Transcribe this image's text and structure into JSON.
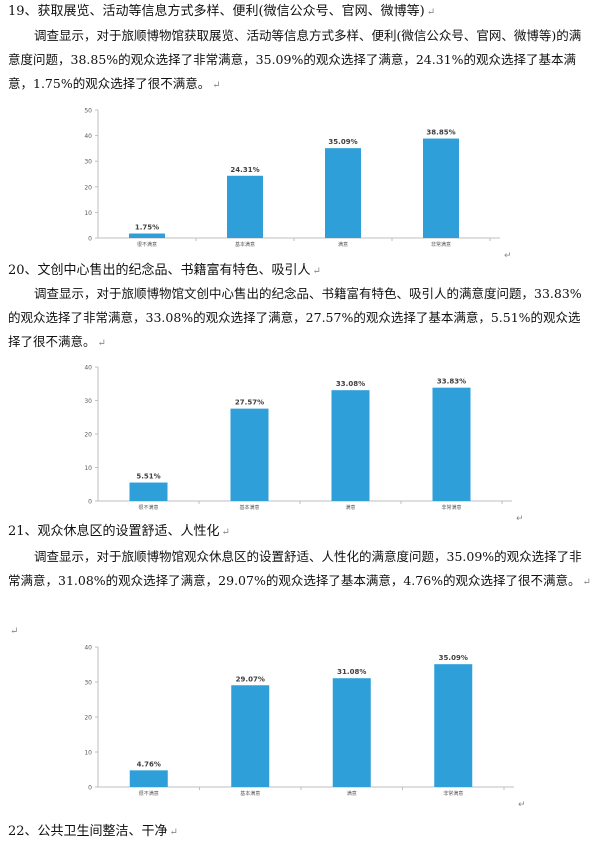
{
  "sections": [
    {
      "heading": "19、获取展览、活动等信息方式多样、便利(微信公众号、官网、微博等)",
      "paragraph": "调查显示，对于旅顺博物馆获取展览、活动等信息方式多样、便利(微信公众号、官网、微博等)的满意度问题，38.85%的观众选择了非常满意，35.09%的观众选择了满意，24.31%的观众选择了基本满意，1.75%的观众选择了很不满意。"
    },
    {
      "heading": "20、文创中心售出的纪念品、书籍富有特色、吸引人",
      "paragraph": "调查显示，对于旅顺博物馆文创中心售出的纪念品、书籍富有特色、吸引人的满意度问题，33.83%的观众选择了非常满意，33.08%的观众选择了满意，27.57%的观众选择了基本满意，5.51%的观众选择了很不满意。"
    },
    {
      "heading": "21、观众休息区的设置舒适、人性化",
      "paragraph": "调查显示，对于旅顺博物馆观众休息区的设置舒适、人性化的满意度问题，35.09%的观众选择了非常满意，31.08%的观众选择了满意，29.07%的观众选择了基本满意，4.76%的观众选择了很不满意。"
    },
    {
      "heading": "22、公共卫生间整洁、干净"
    }
  ],
  "paragraph_mark": "↵",
  "bar_color": "#2e9fd8",
  "chart_data": [
    {
      "type": "bar",
      "categories": [
        "很不满意",
        "基本满意",
        "满意",
        "非常满意"
      ],
      "values": [
        1.75,
        24.31,
        35.09,
        38.85
      ],
      "labels": [
        "1.75%",
        "24.31%",
        "35.09%",
        "38.85%"
      ],
      "ylim": [
        0,
        50
      ],
      "yticks": [
        0,
        10,
        20,
        30,
        40,
        50
      ],
      "grid": false
    },
    {
      "type": "bar",
      "categories": [
        "很不满意",
        "基本满意",
        "满意",
        "非常满意"
      ],
      "values": [
        5.51,
        27.57,
        33.08,
        33.83
      ],
      "labels": [
        "5.51%",
        "27.57%",
        "33.08%",
        "33.83%"
      ],
      "ylim": [
        0,
        40
      ],
      "yticks": [
        0,
        10,
        20,
        30,
        40
      ],
      "grid": false
    },
    {
      "type": "bar",
      "categories": [
        "很不满意",
        "基本满意",
        "满意",
        "非常满意"
      ],
      "values": [
        4.76,
        29.07,
        31.08,
        35.09
      ],
      "labels": [
        "4.76%",
        "29.07%",
        "31.08%",
        "35.09%"
      ],
      "ylim": [
        0,
        40
      ],
      "yticks": [
        0,
        10,
        20,
        30,
        40
      ],
      "grid": false
    }
  ]
}
